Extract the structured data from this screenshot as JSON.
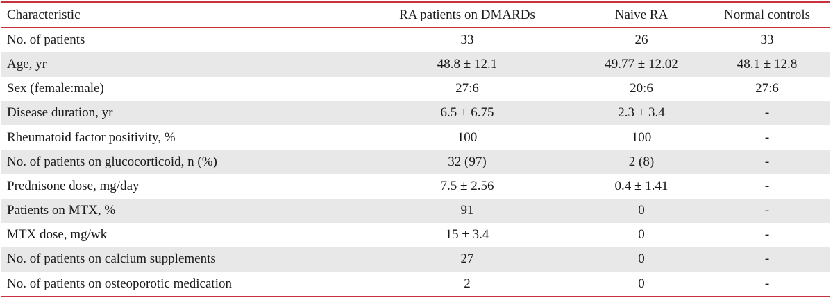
{
  "table": {
    "headers": [
      "Characteristic",
      "RA patients on DMARDs",
      "Naive RA",
      "Normal controls"
    ],
    "rows": [
      [
        "No. of patients",
        "33",
        "26",
        "33"
      ],
      [
        "Age, yr",
        "48.8 ± 12.1",
        "49.77 ± 12.02",
        "48.1 ± 12.8"
      ],
      [
        "Sex (female:male)",
        "27:6",
        "20:6",
        "27:6"
      ],
      [
        "Disease duration, yr",
        "6.5 ± 6.75",
        "2.3 ± 3.4",
        "-"
      ],
      [
        "Rheumatoid factor positivity, %",
        "100",
        "100",
        "-"
      ],
      [
        "No. of patients on glucocorticoid, n (%)",
        "32 (97)",
        "2 (8)",
        "-"
      ],
      [
        "Prednisone dose, mg/day",
        "7.5 ± 2.56",
        "0.4 ± 1.41",
        "-"
      ],
      [
        "Patients on MTX, %",
        "91",
        "0",
        "-"
      ],
      [
        "MTX dose, mg/wk",
        "15 ± 3.4",
        "0",
        "-"
      ],
      [
        "No. of patients on calcium supplements",
        "27",
        "0",
        "-"
      ],
      [
        "No. of patients on osteoporotic medication",
        "2",
        "0",
        "-"
      ]
    ]
  },
  "colors": {
    "rule": "#c8323c",
    "stripe": "#e8e8e8"
  }
}
